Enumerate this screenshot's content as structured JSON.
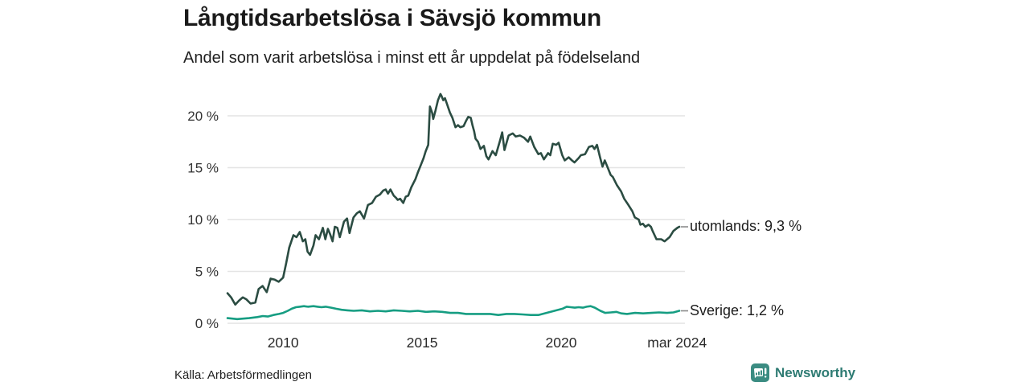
{
  "header": {
    "title": "Långtidsarbetslösa i Sävsjö kommun",
    "subtitle": "Andel som varit arbetslösa i minst ett år uppdelat på födelseland"
  },
  "footer": {
    "source": "Källa: Arbetsförmedlingen",
    "brand": "Newsworthy",
    "brand_icon": "newsworthy-bar-chart-badge"
  },
  "colors": {
    "series_utomlands": "#2b4c42",
    "series_sverige": "#169d82",
    "grid": "#e4e4e4",
    "tick_text": "#333333",
    "leader_dash": "#8a8a8a",
    "brand_teal": "#3b8c82",
    "brand_text": "#2e7b73"
  },
  "chart_data": {
    "type": "line",
    "title": "Långtidsarbetslösa i Sävsjö kommun",
    "subtitle": "Andel som varit arbetslösa i minst ett år uppdelat på födelseland",
    "unit": "%",
    "grid": "horizontal",
    "legend_position": "right-end-labels",
    "x_axis": {
      "range": [
        2008.0,
        2024.25
      ],
      "ticks": [
        {
          "value": 2010,
          "label": "2010"
        },
        {
          "value": 2015,
          "label": "2015"
        },
        {
          "value": 2020,
          "label": "2020"
        },
        {
          "value": 2024.17,
          "label": "mar 2024"
        }
      ]
    },
    "y_axis": {
      "range": [
        0,
        22.75
      ],
      "ticks": [
        {
          "value": 0,
          "label": "0 %"
        },
        {
          "value": 5,
          "label": "5 %"
        },
        {
          "value": 10,
          "label": "10 %"
        },
        {
          "value": 15,
          "label": "15 %"
        },
        {
          "value": 20,
          "label": "20 %"
        }
      ]
    },
    "series": [
      {
        "name": "utomlands",
        "color": "#2b4c42",
        "last_value": 9.3,
        "end_label": "utomlands: 9,3 %",
        "points": [
          [
            2008.0,
            2.9
          ],
          [
            2008.13,
            2.5
          ],
          [
            2008.28,
            1.8
          ],
          [
            2008.42,
            2.2
          ],
          [
            2008.55,
            2.5
          ],
          [
            2008.68,
            2.3
          ],
          [
            2008.83,
            1.9
          ],
          [
            2009.0,
            2.0
          ],
          [
            2009.12,
            3.3
          ],
          [
            2009.26,
            3.6
          ],
          [
            2009.41,
            3.0
          ],
          [
            2009.55,
            4.3
          ],
          [
            2009.7,
            4.2
          ],
          [
            2009.84,
            4.0
          ],
          [
            2010.0,
            4.4
          ],
          [
            2010.11,
            5.8
          ],
          [
            2010.22,
            7.3
          ],
          [
            2010.37,
            8.5
          ],
          [
            2010.48,
            8.3
          ],
          [
            2010.6,
            8.8
          ],
          [
            2010.71,
            7.9
          ],
          [
            2010.8,
            8.1
          ],
          [
            2010.88,
            6.9
          ],
          [
            2010.97,
            6.6
          ],
          [
            2011.09,
            7.5
          ],
          [
            2011.17,
            8.5
          ],
          [
            2011.29,
            8.1
          ],
          [
            2011.43,
            9.2
          ],
          [
            2011.52,
            8.1
          ],
          [
            2011.61,
            9.1
          ],
          [
            2011.69,
            8.6
          ],
          [
            2011.78,
            7.9
          ],
          [
            2011.86,
            9.3
          ],
          [
            2011.95,
            9.2
          ],
          [
            2012.04,
            8.3
          ],
          [
            2012.19,
            9.8
          ],
          [
            2012.3,
            10.1
          ],
          [
            2012.39,
            8.7
          ],
          [
            2012.53,
            10.2
          ],
          [
            2012.65,
            10.6
          ],
          [
            2012.76,
            10.8
          ],
          [
            2012.91,
            10.1
          ],
          [
            2013.05,
            11.4
          ],
          [
            2013.2,
            11.6
          ],
          [
            2013.34,
            12.2
          ],
          [
            2013.48,
            12.4
          ],
          [
            2013.6,
            12.8
          ],
          [
            2013.69,
            12.9
          ],
          [
            2013.77,
            12.5
          ],
          [
            2013.86,
            12.9
          ],
          [
            2013.98,
            12.3
          ],
          [
            2014.06,
            12.1
          ],
          [
            2014.12,
            11.9
          ],
          [
            2014.21,
            12.0
          ],
          [
            2014.32,
            11.6
          ],
          [
            2014.41,
            12.2
          ],
          [
            2014.5,
            12.3
          ],
          [
            2014.61,
            13.1
          ],
          [
            2014.76,
            13.9
          ],
          [
            2014.84,
            14.5
          ],
          [
            2014.93,
            15.1
          ],
          [
            2015.05,
            15.9
          ],
          [
            2015.13,
            16.6
          ],
          [
            2015.22,
            17.2
          ],
          [
            2015.28,
            20.9
          ],
          [
            2015.36,
            20.3
          ],
          [
            2015.4,
            19.7
          ],
          [
            2015.48,
            20.5
          ],
          [
            2015.57,
            21.5
          ],
          [
            2015.66,
            22.1
          ],
          [
            2015.7,
            21.9
          ],
          [
            2015.76,
            21.5
          ],
          [
            2015.82,
            21.7
          ],
          [
            2015.9,
            21.1
          ],
          [
            2016.0,
            20.3
          ],
          [
            2016.09,
            19.8
          ],
          [
            2016.2,
            18.9
          ],
          [
            2016.29,
            19.1
          ],
          [
            2016.37,
            18.9
          ],
          [
            2016.49,
            19.0
          ],
          [
            2016.58,
            19.5
          ],
          [
            2016.66,
            19.9
          ],
          [
            2016.75,
            19.8
          ],
          [
            2016.81,
            19.1
          ],
          [
            2016.87,
            18.5
          ],
          [
            2016.92,
            17.8
          ],
          [
            2017.01,
            17.5
          ],
          [
            2017.1,
            16.8
          ],
          [
            2017.22,
            17.1
          ],
          [
            2017.31,
            16.1
          ],
          [
            2017.39,
            15.8
          ],
          [
            2017.53,
            16.6
          ],
          [
            2017.65,
            16.2
          ],
          [
            2017.79,
            17.5
          ],
          [
            2017.88,
            18.4
          ],
          [
            2017.96,
            16.7
          ],
          [
            2018.11,
            18.1
          ],
          [
            2018.26,
            18.3
          ],
          [
            2018.37,
            18.0
          ],
          [
            2018.52,
            18.1
          ],
          [
            2018.66,
            17.9
          ],
          [
            2018.81,
            17.5
          ],
          [
            2018.89,
            18.0
          ],
          [
            2019.03,
            17.0
          ],
          [
            2019.18,
            16.3
          ],
          [
            2019.27,
            16.4
          ],
          [
            2019.38,
            15.8
          ],
          [
            2019.53,
            16.4
          ],
          [
            2019.61,
            16.2
          ],
          [
            2019.7,
            17.3
          ],
          [
            2019.82,
            17.2
          ],
          [
            2019.91,
            17.4
          ],
          [
            2020.04,
            16.2
          ],
          [
            2020.13,
            15.7
          ],
          [
            2020.27,
            16.0
          ],
          [
            2020.39,
            15.7
          ],
          [
            2020.48,
            15.5
          ],
          [
            2020.62,
            15.9
          ],
          [
            2020.71,
            16.2
          ],
          [
            2020.86,
            16.3
          ],
          [
            2021.0,
            17.0
          ],
          [
            2021.12,
            17.1
          ],
          [
            2021.2,
            16.8
          ],
          [
            2021.29,
            17.2
          ],
          [
            2021.4,
            16.0
          ],
          [
            2021.49,
            15.1
          ],
          [
            2021.57,
            15.7
          ],
          [
            2021.69,
            14.9
          ],
          [
            2021.78,
            14.3
          ],
          [
            2021.86,
            14.1
          ],
          [
            2022.01,
            13.3
          ],
          [
            2022.16,
            12.7
          ],
          [
            2022.27,
            12.0
          ],
          [
            2022.42,
            11.4
          ],
          [
            2022.56,
            10.8
          ],
          [
            2022.65,
            10.2
          ],
          [
            2022.79,
            10.0
          ],
          [
            2022.85,
            9.5
          ],
          [
            2022.94,
            9.6
          ],
          [
            2023.03,
            9.3
          ],
          [
            2023.14,
            9.5
          ],
          [
            2023.23,
            9.3
          ],
          [
            2023.29,
            8.9
          ],
          [
            2023.43,
            8.1
          ],
          [
            2023.51,
            8.1
          ],
          [
            2023.6,
            8.1
          ],
          [
            2023.72,
            7.9
          ],
          [
            2023.81,
            8.1
          ],
          [
            2023.9,
            8.3
          ],
          [
            2024.04,
            8.9
          ],
          [
            2024.18,
            9.2
          ],
          [
            2024.25,
            9.3
          ]
        ]
      },
      {
        "name": "Sverige",
        "color": "#169d82",
        "last_value": 1.2,
        "end_label": "Sverige: 1,2 %",
        "points": [
          [
            2008.0,
            0.5
          ],
          [
            2008.35,
            0.4
          ],
          [
            2008.78,
            0.5
          ],
          [
            2009.07,
            0.6
          ],
          [
            2009.27,
            0.7
          ],
          [
            2009.45,
            0.65
          ],
          [
            2009.65,
            0.8
          ],
          [
            2009.85,
            0.9
          ],
          [
            2010.0,
            1.0
          ],
          [
            2010.17,
            1.2
          ],
          [
            2010.31,
            1.4
          ],
          [
            2010.46,
            1.55
          ],
          [
            2010.6,
            1.6
          ],
          [
            2010.75,
            1.65
          ],
          [
            2010.89,
            1.6
          ],
          [
            2011.09,
            1.65
          ],
          [
            2011.24,
            1.6
          ],
          [
            2011.38,
            1.55
          ],
          [
            2011.53,
            1.6
          ],
          [
            2011.73,
            1.5
          ],
          [
            2011.9,
            1.4
          ],
          [
            2012.1,
            1.3
          ],
          [
            2012.31,
            1.25
          ],
          [
            2012.54,
            1.2
          ],
          [
            2012.83,
            1.25
          ],
          [
            2013.12,
            1.15
          ],
          [
            2013.41,
            1.2
          ],
          [
            2013.69,
            1.15
          ],
          [
            2013.98,
            1.25
          ],
          [
            2014.27,
            1.2
          ],
          [
            2014.56,
            1.15
          ],
          [
            2014.85,
            1.2
          ],
          [
            2015.14,
            1.1
          ],
          [
            2015.43,
            1.15
          ],
          [
            2015.72,
            1.1
          ],
          [
            2016.01,
            1.0
          ],
          [
            2016.29,
            1.0
          ],
          [
            2016.58,
            0.9
          ],
          [
            2016.87,
            0.9
          ],
          [
            2017.16,
            0.9
          ],
          [
            2017.45,
            0.9
          ],
          [
            2017.74,
            0.8
          ],
          [
            2018.03,
            0.9
          ],
          [
            2018.32,
            0.9
          ],
          [
            2018.61,
            0.85
          ],
          [
            2018.9,
            0.8
          ],
          [
            2019.18,
            0.8
          ],
          [
            2019.47,
            1.0
          ],
          [
            2019.76,
            1.2
          ],
          [
            2020.05,
            1.4
          ],
          [
            2020.2,
            1.6
          ],
          [
            2020.34,
            1.55
          ],
          [
            2020.49,
            1.5
          ],
          [
            2020.63,
            1.55
          ],
          [
            2020.78,
            1.5
          ],
          [
            2020.92,
            1.6
          ],
          [
            2021.06,
            1.65
          ],
          [
            2021.21,
            1.5
          ],
          [
            2021.41,
            1.2
          ],
          [
            2021.58,
            1.0
          ],
          [
            2021.79,
            1.05
          ],
          [
            2021.99,
            1.1
          ],
          [
            2022.16,
            0.95
          ],
          [
            2022.37,
            0.9
          ],
          [
            2022.66,
            1.0
          ],
          [
            2022.95,
            0.95
          ],
          [
            2023.24,
            1.0
          ],
          [
            2023.52,
            1.05
          ],
          [
            2023.81,
            1.0
          ],
          [
            2024.04,
            1.05
          ],
          [
            2024.25,
            1.2
          ]
        ]
      }
    ]
  }
}
